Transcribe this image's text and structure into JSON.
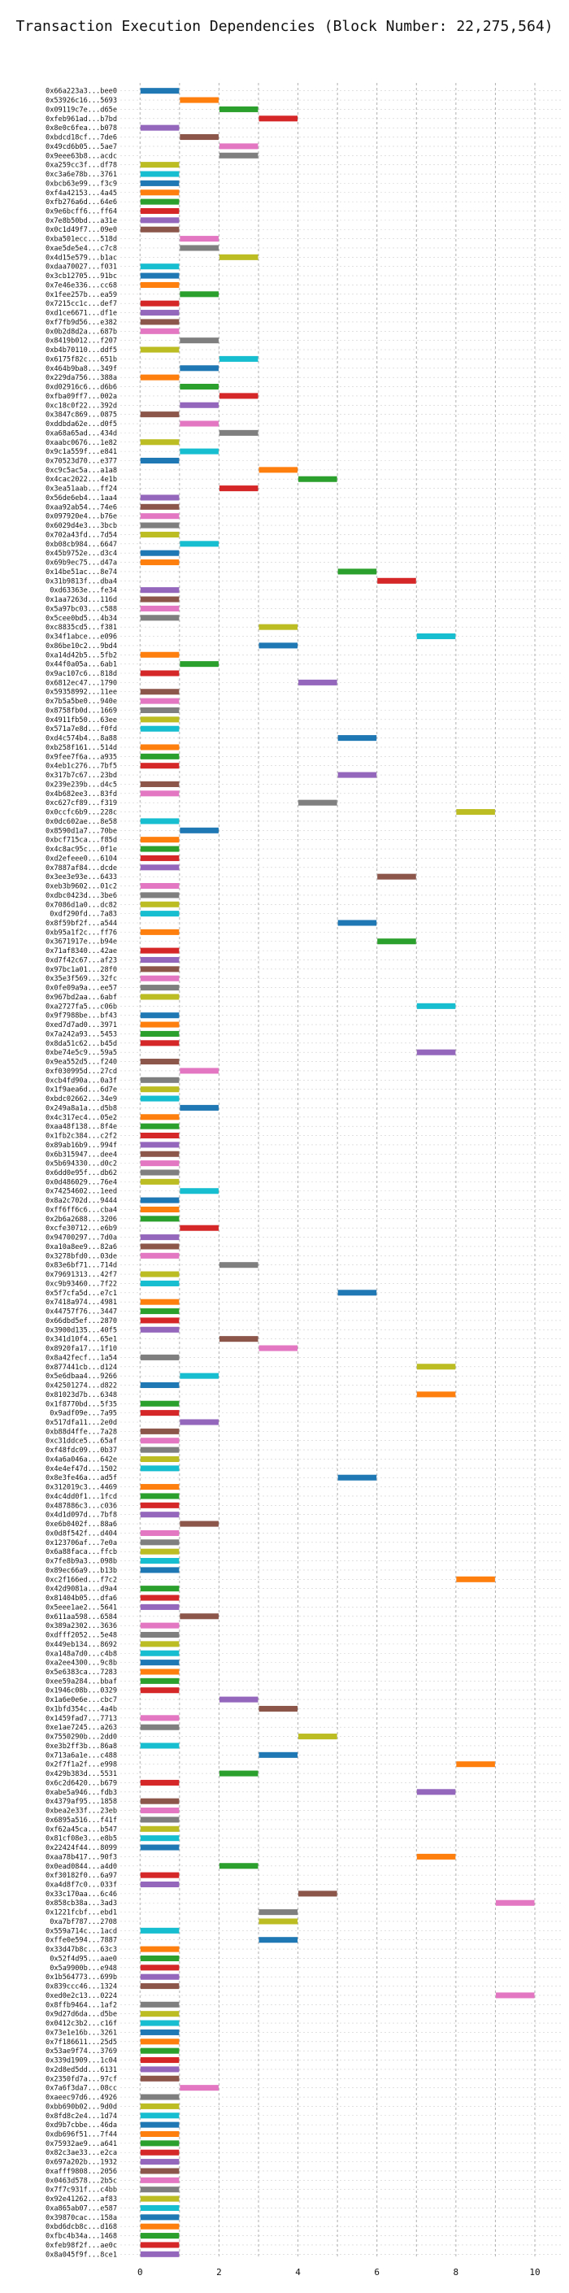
{
  "chart_data": {
    "type": "bar",
    "title": "Transaction Execution Dependencies (Block Number: 22,275,564)",
    "xlim": [
      -0.5,
      10.7
    ],
    "x_ticks": [
      "0",
      "2",
      "4",
      "6",
      "8",
      "10"
    ],
    "grid": true,
    "colors": [
      "#1f77b4",
      "#ff7f0e",
      "#2ca02c",
      "#d62728",
      "#9467bd",
      "#8c564b",
      "#e377c2",
      "#7f7f7f",
      "#bcbd22",
      "#17becf"
    ],
    "transactions": [
      {
        "tx": "0x66a223a3...bee0",
        "start": 0
      },
      {
        "tx": "0x53926c16...5693",
        "start": 1
      },
      {
        "tx": "0x09119c7e...d65e",
        "start": 2
      },
      {
        "tx": "0xfeb961ad...b7bd",
        "start": 3
      },
      {
        "tx": "0x8e0c6fea...b078",
        "start": 0
      },
      {
        "tx": "0xbdcd18cf...7de6",
        "start": 1
      },
      {
        "tx": "0x49cd6b05...5ae7",
        "start": 2
      },
      {
        "tx": "0x9eee63b8...acdc",
        "start": 2
      },
      {
        "tx": "0xa259cc3f...df78",
        "start": 0
      },
      {
        "tx": "0xc3a6e78b...3761",
        "start": 0
      },
      {
        "tx": "0xbcb63e99...f3c9",
        "start": 0
      },
      {
        "tx": "0xf4a42153...4a45",
        "start": 0
      },
      {
        "tx": "0xfb276a6d...64e6",
        "start": 0
      },
      {
        "tx": "0x9e6bcff6...ff64",
        "start": 0
      },
      {
        "tx": "0x7e8b50bd...a31e",
        "start": 0
      },
      {
        "tx": "0x0c1d49f7...09e0",
        "start": 0
      },
      {
        "tx": "0xba501ecc...518d",
        "start": 1
      },
      {
        "tx": "0xae5de5e4...c7c8",
        "start": 1
      },
      {
        "tx": "0x4d15e579...b1ac",
        "start": 2
      },
      {
        "tx": "0xdaa70027...f031",
        "start": 0
      },
      {
        "tx": "0x3cb12705...91bc",
        "start": 0
      },
      {
        "tx": "0x7e46e336...cc68",
        "start": 0
      },
      {
        "tx": "0x1fee257b...ea59",
        "start": 1
      },
      {
        "tx": "0x7215cc1c...def7",
        "start": 0
      },
      {
        "tx": "0xd1ce6671...df1e",
        "start": 0
      },
      {
        "tx": "0xf7fb9d56...e382",
        "start": 0
      },
      {
        "tx": "0x0b2d8d2a...687b",
        "start": 0
      },
      {
        "tx": "0x8419b012...f207",
        "start": 1
      },
      {
        "tx": "0xb4b70110...ddf5",
        "start": 0
      },
      {
        "tx": "0x6175f82c...651b",
        "start": 2
      },
      {
        "tx": "0x464b9ba8...349f",
        "start": 1
      },
      {
        "tx": "0x229da756...388a",
        "start": 0
      },
      {
        "tx": "0xd02916c6...d6b6",
        "start": 1
      },
      {
        "tx": "0xfba09ff7...002a",
        "start": 2
      },
      {
        "tx": "0xc18c0f22...392d",
        "start": 1
      },
      {
        "tx": "0x3847c869...0875",
        "start": 0
      },
      {
        "tx": "0xddbda62e...d0f5",
        "start": 1
      },
      {
        "tx": "0xa68a65ad...434d",
        "start": 2
      },
      {
        "tx": "0xaabc0676...1e82",
        "start": 0
      },
      {
        "tx": "0x9c1a559f...e841",
        "start": 1
      },
      {
        "tx": "0x70523d70...e377",
        "start": 0
      },
      {
        "tx": "0xc9c5ac5a...a1a8",
        "start": 3
      },
      {
        "tx": "0x4cac2022...4e1b",
        "start": 4
      },
      {
        "tx": "0x3ea51aab...ff24",
        "start": 2
      },
      {
        "tx": "0x56de6eb4...1aa4",
        "start": 0
      },
      {
        "tx": "0xaa92ab54...74e6",
        "start": 0
      },
      {
        "tx": "0x097920e4...b76e",
        "start": 0
      },
      {
        "tx": "0x6029d4e3...3bcb",
        "start": 0
      },
      {
        "tx": "0x702a43fd...7d54",
        "start": 0
      },
      {
        "tx": "0xb08cb984...6647",
        "start": 1
      },
      {
        "tx": "0x45b9752e...d3c4",
        "start": 0
      },
      {
        "tx": "0x69b9ec75...d47a",
        "start": 0
      },
      {
        "tx": "0x14be51ac...8e74",
        "start": 5
      },
      {
        "tx": "0x31b9813f...dba4",
        "start": 6
      },
      {
        "tx": "0xd63363e...fe34",
        "start": 0
      },
      {
        "tx": "0x1aa7263d...116d",
        "start": 0
      },
      {
        "tx": "0x5a97bc03...c588",
        "start": 0
      },
      {
        "tx": "0x5cee0bd5...4b34",
        "start": 0
      },
      {
        "tx": "0xc8835cd5...f381",
        "start": 3
      },
      {
        "tx": "0x34f1abce...e096",
        "start": 7
      },
      {
        "tx": "0x86be10c2...9bd4",
        "start": 3
      },
      {
        "tx": "0xa14d42b5...5fb2",
        "start": 0
      },
      {
        "tx": "0x44f0a05a...6ab1",
        "start": 1
      },
      {
        "tx": "0x9ac107c6...818d",
        "start": 0
      },
      {
        "tx": "0x6812ec47...1790",
        "start": 4
      },
      {
        "tx": "0x59358992...11ee",
        "start": 0
      },
      {
        "tx": "0x7b5a5be0...940e",
        "start": 0
      },
      {
        "tx": "0x8758fb0d...1669",
        "start": 0
      },
      {
        "tx": "0x4911fb50...63ee",
        "start": 0
      },
      {
        "tx": "0x571a7e8d...f0fd",
        "start": 0
      },
      {
        "tx": "0xd4c574b4...8a88",
        "start": 5
      },
      {
        "tx": "0xb258f161...514d",
        "start": 0
      },
      {
        "tx": "0x9fee7f6a...a935",
        "start": 0
      },
      {
        "tx": "0x4eb1c276...7bf5",
        "start": 0
      },
      {
        "tx": "0x317b7c67...23bd",
        "start": 5
      },
      {
        "tx": "0x239e239b...d4c5",
        "start": 0
      },
      {
        "tx": "0x4b682ee3...83fd",
        "start": 0
      },
      {
        "tx": "0xc627cf89...f319",
        "start": 4
      },
      {
        "tx": "0x0ccfc6b9...228c",
        "start": 8
      },
      {
        "tx": "0x0dc602ae...8e58",
        "start": 0
      },
      {
        "tx": "0x8590d1a7...70be",
        "start": 1
      },
      {
        "tx": "0xbcf715ca...f85d",
        "start": 0
      },
      {
        "tx": "0x4c8ac95c...0f1e",
        "start": 0
      },
      {
        "tx": "0xd2efeee0...6104",
        "start": 0
      },
      {
        "tx": "0x7887af84...dcde",
        "start": 0
      },
      {
        "tx": "0x3ee3e93e...6433",
        "start": 6
      },
      {
        "tx": "0xeb3b9602...01c2",
        "start": 0
      },
      {
        "tx": "0xdbc0423d...3be6",
        "start": 0
      },
      {
        "tx": "0x7086d1a0...dc82",
        "start": 0
      },
      {
        "tx": "0xdf290fd...7a83",
        "start": 0
      },
      {
        "tx": "0x8f59bf2f...a544",
        "start": 5
      },
      {
        "tx": "0xb95a1f2c...ff76",
        "start": 0
      },
      {
        "tx": "0x3671917e...b94e",
        "start": 6
      },
      {
        "tx": "0x71af8340...42ae",
        "start": 0
      },
      {
        "tx": "0xd7f42c67...af23",
        "start": 0
      },
      {
        "tx": "0x97bc1a01...28f0",
        "start": 0
      },
      {
        "tx": "0x35e3f569...32fc",
        "start": 0
      },
      {
        "tx": "0x0fe09a9a...ee57",
        "start": 0
      },
      {
        "tx": "0x967bd2aa...6abf",
        "start": 0
      },
      {
        "tx": "0xa2727fa5...c06b",
        "start": 7
      },
      {
        "tx": "0x9f7988be...bf43",
        "start": 0
      },
      {
        "tx": "0xed7d7ad0...3971",
        "start": 0
      },
      {
        "tx": "0x7a242a93...5453",
        "start": 0
      },
      {
        "tx": "0x8da51c62...b45d",
        "start": 0
      },
      {
        "tx": "0xbe74e5c9...59a5",
        "start": 7
      },
      {
        "tx": "0x9ea552d5...f240",
        "start": 0
      },
      {
        "tx": "0xf030995d...27cd",
        "start": 1
      },
      {
        "tx": "0xcb4fd90a...0a3f",
        "start": 0
      },
      {
        "tx": "0x1f9aea6d...6d7e",
        "start": 0
      },
      {
        "tx": "0xbdc02662...34e9",
        "start": 0
      },
      {
        "tx": "0x249a8a1a...d5b8",
        "start": 1
      },
      {
        "tx": "0x4c317ec4...05e2",
        "start": 0
      },
      {
        "tx": "0xaa48f138...8f4e",
        "start": 0
      },
      {
        "tx": "0x1fb2c384...c2f2",
        "start": 0
      },
      {
        "tx": "0x89ab16b9...994f",
        "start": 0
      },
      {
        "tx": "0x6b315947...dee4",
        "start": 0
      },
      {
        "tx": "0x5b694330...d0c2",
        "start": 0
      },
      {
        "tx": "0x6dd0e95f...db62",
        "start": 0
      },
      {
        "tx": "0x0d486029...76e4",
        "start": 0
      },
      {
        "tx": "0x74254602...1eed",
        "start": 1
      },
      {
        "tx": "0x8a2c702d...9444",
        "start": 0
      },
      {
        "tx": "0xff6ff6c6...cba4",
        "start": 0
      },
      {
        "tx": "0x2b6a2688...3206",
        "start": 0
      },
      {
        "tx": "0xcfe30712...e6b9",
        "start": 1
      },
      {
        "tx": "0x94700297...7d0a",
        "start": 0
      },
      {
        "tx": "0xa10a8ee9...82a6",
        "start": 0
      },
      {
        "tx": "0x3278bfd0...03de",
        "start": 0
      },
      {
        "tx": "0x83e6bf71...714d",
        "start": 2
      },
      {
        "tx": "0x79691313...42f7",
        "start": 0
      },
      {
        "tx": "0xc9b93460...7f22",
        "start": 0
      },
      {
        "tx": "0x5f7cfa5d...e7c1",
        "start": 5
      },
      {
        "tx": "0x7418a974...4981",
        "start": 0
      },
      {
        "tx": "0x44757f76...3447",
        "start": 0
      },
      {
        "tx": "0x66dbd5ef...2870",
        "start": 0
      },
      {
        "tx": "0x3900d135...40f5",
        "start": 0
      },
      {
        "tx": "0x341d10f4...65e1",
        "start": 2
      },
      {
        "tx": "0x8920fa17...1f10",
        "start": 3
      },
      {
        "tx": "0x8a42fecf...1a54",
        "start": 0
      },
      {
        "tx": "0x877441cb...d124",
        "start": 7
      },
      {
        "tx": "0x5e6dbaa4...9266",
        "start": 1
      },
      {
        "tx": "0x42501274...d822",
        "start": 0
      },
      {
        "tx": "0x81023d7b...6348",
        "start": 7
      },
      {
        "tx": "0x1f8770bd...5f35",
        "start": 0
      },
      {
        "tx": "0x9adf09e...7a95",
        "start": 0
      },
      {
        "tx": "0x517dfa11...2e0d",
        "start": 1
      },
      {
        "tx": "0xb88d4ffe...7a28",
        "start": 0
      },
      {
        "tx": "0xc31ddce5...65af",
        "start": 0
      },
      {
        "tx": "0xf48fdc09...0b37",
        "start": 0
      },
      {
        "tx": "0x4a6a046a...642e",
        "start": 0
      },
      {
        "tx": "0x4e4ef47d...1502",
        "start": 0
      },
      {
        "tx": "0x8e3fe46a...ad5f",
        "start": 5
      },
      {
        "tx": "0x312019c3...4469",
        "start": 0
      },
      {
        "tx": "0x4c4dd0f1...1fcd",
        "start": 0
      },
      {
        "tx": "0x487886c3...c036",
        "start": 0
      },
      {
        "tx": "0x4d1d097d...7bf8",
        "start": 0
      },
      {
        "tx": "0xe6b0402f...88a6",
        "start": 1
      },
      {
        "tx": "0x0d8f542f...d404",
        "start": 0
      },
      {
        "tx": "0x123706af...7e0a",
        "start": 0
      },
      {
        "tx": "0x6a88faca...ffcb",
        "start": 0
      },
      {
        "tx": "0x7fe8b9a3...098b",
        "start": 0
      },
      {
        "tx": "0x89ec66a9...b13b",
        "start": 0
      },
      {
        "tx": "0xc2f166ed...f7c2",
        "start": 8
      },
      {
        "tx": "0x42d9081a...d9a4",
        "start": 0
      },
      {
        "tx": "0x81404b05...dfa6",
        "start": 0
      },
      {
        "tx": "0x5eee1ae2...5641",
        "start": 0
      },
      {
        "tx": "0x611aa598...6584",
        "start": 1
      },
      {
        "tx": "0x389a2302...3636",
        "start": 0
      },
      {
        "tx": "0xdfff2052...5e48",
        "start": 0
      },
      {
        "tx": "0x449eb134...8692",
        "start": 0
      },
      {
        "tx": "0xa148a7d0...c4b8",
        "start": 0
      },
      {
        "tx": "0xa2ee4300...9c8b",
        "start": 0
      },
      {
        "tx": "0x5e6383ca...7283",
        "start": 0
      },
      {
        "tx": "0xee59a284...bbaf",
        "start": 0
      },
      {
        "tx": "0x1946c08b...0329",
        "start": 0
      },
      {
        "tx": "0x1a6e0e6e...cbc7",
        "start": 2
      },
      {
        "tx": "0x1bfd354c...4a4b",
        "start": 3
      },
      {
        "tx": "0x1459fad7...7713",
        "start": 0
      },
      {
        "tx": "0xe1ae7245...a263",
        "start": 0
      },
      {
        "tx": "0x7550290b...2dd0",
        "start": 4
      },
      {
        "tx": "0xe3b2ff3b...86a8",
        "start": 0
      },
      {
        "tx": "0x713a6a1e...c488",
        "start": 3
      },
      {
        "tx": "0x2f7f1a2f...e998",
        "start": 8
      },
      {
        "tx": "0x429b383d...5531",
        "start": 2
      },
      {
        "tx": "0x6c2d6420...b679",
        "start": 0
      },
      {
        "tx": "0xabe5a946...fdb3",
        "start": 7
      },
      {
        "tx": "0x4379af95...1858",
        "start": 0
      },
      {
        "tx": "0xbea2e33f...23eb",
        "start": 0
      },
      {
        "tx": "0x6895a516...f41f",
        "start": 0
      },
      {
        "tx": "0xf62a45ca...b547",
        "start": 0
      },
      {
        "tx": "0x81cf08e3...e8b5",
        "start": 0
      },
      {
        "tx": "0x22424f44...8099",
        "start": 0
      },
      {
        "tx": "0xaa78b417...90f3",
        "start": 7
      },
      {
        "tx": "0x0ead0844...a4d0",
        "start": 2
      },
      {
        "tx": "0xf30182f0...6a97",
        "start": 0
      },
      {
        "tx": "0xa4d8f7c0...033f",
        "start": 0
      },
      {
        "tx": "0x33c170aa...6c46",
        "start": 4
      },
      {
        "tx": "0x858cb38a...3ad3",
        "start": 9
      },
      {
        "tx": "0x1221fcbf...ebd1",
        "start": 3
      },
      {
        "tx": "0xa7bf787...2708",
        "start": 3
      },
      {
        "tx": "0x559a714c...1acd",
        "start": 0
      },
      {
        "tx": "0xffe0e594...7887",
        "start": 3
      },
      {
        "tx": "0x33d47b8c...63c3",
        "start": 0
      },
      {
        "tx": "0x52f4d95...aae0",
        "start": 0
      },
      {
        "tx": "0x5a9900b...e948",
        "start": 0
      },
      {
        "tx": "0x1b564773...699b",
        "start": 0
      },
      {
        "tx": "0x839ccc46...1324",
        "start": 0
      },
      {
        "tx": "0xed0e2c13...0224",
        "start": 9
      },
      {
        "tx": "0x8ffb9464...1af2",
        "start": 0
      },
      {
        "tx": "0x9d27d6da...d5be",
        "start": 0
      },
      {
        "tx": "0x0412c3b2...c16f",
        "start": 0
      },
      {
        "tx": "0x73e1e16b...3261",
        "start": 0
      },
      {
        "tx": "0x7f186611...25d5",
        "start": 0
      },
      {
        "tx": "0x53ae9f74...3769",
        "start": 0
      },
      {
        "tx": "0x339d1909...1c04",
        "start": 0
      },
      {
        "tx": "0x2d8ed5dd...6131",
        "start": 0
      },
      {
        "tx": "0x2350fd7a...97cf",
        "start": 0
      },
      {
        "tx": "0x7a6f3da7...08cc",
        "start": 1
      },
      {
        "tx": "0xaeec97d6...4926",
        "start": 0
      },
      {
        "tx": "0xbb690b02...9d0d",
        "start": 0
      },
      {
        "tx": "0x8fd8c2e4...1d74",
        "start": 0
      },
      {
        "tx": "0xd9b7cbbe...46da",
        "start": 0
      },
      {
        "tx": "0xdb696f51...7f44",
        "start": 0
      },
      {
        "tx": "0x75932ae9...a641",
        "start": 0
      },
      {
        "tx": "0x82c3ae33...e2ca",
        "start": 0
      },
      {
        "tx": "0x697a202b...1932",
        "start": 0
      },
      {
        "tx": "0xafff9808...2056",
        "start": 0
      },
      {
        "tx": "0x0463d578...2b5c",
        "start": 0
      },
      {
        "tx": "0x7f7c931f...c4bb",
        "start": 0
      },
      {
        "tx": "0x92e41262...af83",
        "start": 0
      },
      {
        "tx": "0xa865ab07...e587",
        "start": 0
      },
      {
        "tx": "0x39870cac...158a",
        "start": 0
      },
      {
        "tx": "0xbd6dcb8c...d168",
        "start": 0
      },
      {
        "tx": "0xfbc4b34a...1468",
        "start": 0
      },
      {
        "tx": "0xfeb98f2f...ae0c",
        "start": 0
      },
      {
        "tx": "0x8a045f9f...8ce1",
        "start": 0
      }
    ]
  }
}
